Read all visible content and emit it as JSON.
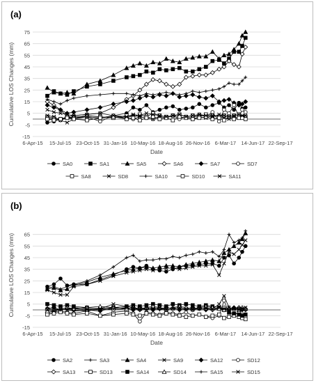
{
  "chart_data": [
    {
      "type": "line",
      "panel_label": "(a)",
      "xlabel": "Date",
      "ylabel": "Cumulative LOS Changes (mm)",
      "ylim": [
        -15,
        75
      ],
      "yticks": [
        -15,
        -5,
        5,
        15,
        25,
        35,
        45,
        55,
        65,
        75
      ],
      "xlim": [
        "2015-04-06",
        "2017-09-22"
      ],
      "xticks": [
        "6-Apr-15",
        "15-Jul-15",
        "23-Oct-15",
        "31-Jan-16",
        "10-May-16",
        "18-Aug-16",
        "26-Nov-16",
        "6-Mar-17",
        "14-Jun-17",
        "22-Sep-17"
      ],
      "grid": "horizontal",
      "legend": "bottom",
      "dates": [
        "2015-05-29",
        "2015-06-22",
        "2015-07-16",
        "2015-08-09",
        "2015-09-02",
        "2015-10-20",
        "2015-12-07",
        "2016-01-24",
        "2016-03-12",
        "2016-04-05",
        "2016-04-29",
        "2016-05-23",
        "2016-06-16",
        "2016-07-10",
        "2016-08-03",
        "2016-08-27",
        "2016-09-20",
        "2016-10-14",
        "2016-11-07",
        "2016-12-01",
        "2016-12-25",
        "2017-01-18",
        "2017-02-11",
        "2017-03-01",
        "2017-03-19",
        "2017-04-06",
        "2017-04-24",
        "2017-05-06",
        "2017-05-18"
      ],
      "series": [
        {
          "name": "SA0",
          "marker": "circle-filled",
          "values": [
            -3,
            -2,
            0,
            1,
            1,
            2,
            1,
            3,
            5,
            10,
            8,
            12,
            6,
            8,
            10,
            11,
            8,
            9,
            10,
            13,
            10,
            12,
            14,
            10,
            12,
            8,
            14,
            9,
            10
          ]
        },
        {
          "name": "SA1",
          "marker": "square-filled",
          "values": [
            20,
            24,
            22,
            21,
            24,
            28,
            30,
            33,
            36,
            37,
            38,
            41,
            40,
            43,
            42,
            43,
            44,
            41,
            41,
            43,
            45,
            50,
            51,
            48,
            52,
            58,
            58,
            63,
            70
          ]
        },
        {
          "name": "SA5",
          "marker": "triangle-filled",
          "values": [
            27,
            23,
            22,
            23,
            22,
            30,
            33,
            38,
            44,
            46,
            48,
            46,
            49,
            48,
            52,
            50,
            49,
            52,
            53,
            54,
            54,
            58,
            52,
            55,
            56,
            60,
            65,
            72,
            75
          ]
        },
        {
          "name": "SA6",
          "marker": "diamond-open",
          "values": [
            15,
            12,
            8,
            2,
            3,
            4,
            5,
            10,
            17,
            20,
            25,
            30,
            34,
            33,
            30,
            28,
            30,
            36,
            37,
            38,
            38,
            40,
            43,
            45,
            50,
            47,
            45,
            56,
            62
          ]
        },
        {
          "name": "SA7",
          "marker": "diamond-filled",
          "values": [
            12,
            10,
            8,
            5,
            6,
            8,
            10,
            13,
            15,
            16,
            18,
            20,
            19,
            21,
            20,
            22,
            19,
            20,
            21,
            19,
            18,
            20,
            15,
            16,
            17,
            14,
            12,
            13,
            15
          ]
        },
        {
          "name": "SD7",
          "marker": "circle-open",
          "values": [
            1,
            0,
            -1,
            1,
            2,
            2,
            -2,
            3,
            1,
            0,
            2,
            1,
            0,
            2,
            1,
            3,
            0,
            2,
            1,
            4,
            2,
            6,
            -2,
            8,
            5,
            12,
            2,
            8,
            6
          ]
        },
        {
          "name": "SA8",
          "marker": "square-open",
          "values": [
            2,
            1,
            0,
            2,
            1,
            3,
            2,
            1,
            3,
            2,
            4,
            2,
            5,
            3,
            2,
            3,
            4,
            2,
            3,
            2,
            4,
            3,
            2,
            3,
            2,
            3,
            4,
            2,
            2
          ]
        },
        {
          "name": "SD8",
          "marker": "x",
          "values": [
            3,
            2,
            -1,
            -3,
            0,
            2,
            1,
            2,
            1,
            3,
            2,
            1,
            0,
            2,
            1,
            3,
            2,
            1,
            0,
            2,
            1,
            3,
            2,
            1,
            0,
            2,
            1,
            2,
            1
          ]
        },
        {
          "name": "SA10",
          "marker": "plus",
          "values": [
            17,
            15,
            13,
            16,
            18,
            20,
            21,
            22,
            22,
            21,
            20,
            22,
            21,
            22,
            23,
            22,
            21,
            22,
            24,
            23,
            24,
            25,
            26,
            28,
            31,
            30,
            30,
            33,
            36
          ]
        },
        {
          "name": "SD10",
          "marker": "square-open",
          "values": [
            0,
            -1,
            0,
            1,
            0,
            -1,
            1,
            2,
            0,
            1,
            -1,
            1,
            2,
            0,
            1,
            -1,
            2,
            1,
            0,
            1,
            2,
            0,
            1,
            -1,
            2,
            0,
            1,
            1,
            0
          ]
        },
        {
          "name": "SA11",
          "marker": "x",
          "values": [
            8,
            6,
            5,
            4,
            3,
            4,
            5,
            3,
            2,
            4,
            3,
            5,
            4,
            3,
            2,
            3,
            4,
            2,
            3,
            4,
            3,
            2,
            4,
            3,
            2,
            3,
            4,
            3,
            3
          ]
        }
      ]
    },
    {
      "type": "line",
      "panel_label": "(b)",
      "xlabel": "Date",
      "ylabel": "Cumulative LOS Changes (mm)",
      "ylim": [
        -15,
        75
      ],
      "yticks": [
        -15,
        -5,
        5,
        15,
        25,
        35,
        45,
        55,
        65
      ],
      "xlim": [
        "2015-04-06",
        "2017-09-22"
      ],
      "xticks": [
        "6-Apr-15",
        "15-Jul-15",
        "23-Oct-15",
        "31-Jan-16",
        "10-May-16",
        "18-Aug-16",
        "26-Nov-16",
        "6-Mar-17",
        "14-Jun-17",
        "22-Sep-17"
      ],
      "grid": "horizontal",
      "legend": "bottom",
      "dates": [
        "2015-05-29",
        "2015-06-22",
        "2015-07-16",
        "2015-08-09",
        "2015-09-02",
        "2015-10-20",
        "2015-12-07",
        "2016-01-24",
        "2016-03-12",
        "2016-04-05",
        "2016-04-29",
        "2016-05-23",
        "2016-06-16",
        "2016-07-10",
        "2016-08-03",
        "2016-08-27",
        "2016-09-20",
        "2016-10-14",
        "2016-11-07",
        "2016-12-01",
        "2016-12-25",
        "2017-01-18",
        "2017-02-11",
        "2017-03-01",
        "2017-03-19",
        "2017-04-06",
        "2017-04-24",
        "2017-05-06",
        "2017-05-18"
      ],
      "series": [
        {
          "name": "SA2",
          "marker": "circle-filled",
          "values": [
            20,
            22,
            27,
            21,
            22,
            22,
            26,
            30,
            35,
            37,
            36,
            38,
            35,
            34,
            33,
            35,
            37,
            38,
            38,
            39,
            40,
            40,
            38,
            45,
            47,
            40,
            45,
            50,
            55
          ]
        },
        {
          "name": "SA3",
          "marker": "plus",
          "values": [
            19,
            20,
            18,
            20,
            22,
            25,
            30,
            37,
            45,
            47,
            42,
            43,
            43,
            44,
            44,
            46,
            45,
            47,
            48,
            50,
            49,
            50,
            46,
            52,
            65,
            58,
            60,
            62,
            68
          ]
        },
        {
          "name": "SA4",
          "marker": "triangle-filled",
          "values": [
            18,
            19,
            17,
            18,
            21,
            24,
            28,
            31,
            34,
            35,
            36,
            37,
            36,
            37,
            38,
            38,
            37,
            39,
            40,
            41,
            42,
            43,
            42,
            49,
            52,
            55,
            58,
            61,
            66
          ]
        },
        {
          "name": "SA9",
          "marker": "x",
          "values": [
            17,
            15,
            13,
            13,
            20,
            22,
            25,
            29,
            32,
            33,
            34,
            35,
            34,
            35,
            36,
            36,
            35,
            36,
            37,
            38,
            38,
            39,
            30,
            40,
            50,
            48,
            52,
            56,
            60
          ]
        },
        {
          "name": "SA12",
          "marker": "diamond-filled",
          "values": [
            1,
            2,
            0,
            1,
            1,
            0,
            -1,
            2,
            1,
            0,
            2,
            1,
            0,
            1,
            2,
            1,
            0,
            1,
            2,
            1,
            0,
            2,
            1,
            0,
            1,
            2,
            1,
            0,
            1
          ]
        },
        {
          "name": "SD12",
          "marker": "circle-open",
          "values": [
            -3,
            -2,
            -1,
            -2,
            -3,
            -1,
            -5,
            -2,
            -1,
            -3,
            -10,
            -2,
            -3,
            -4,
            -2,
            -3,
            -4,
            -2,
            -5,
            -4,
            -6,
            -7,
            -5,
            8,
            -3,
            -4,
            -2,
            -4,
            -6
          ]
        },
        {
          "name": "SA13",
          "marker": "diamond-open",
          "values": [
            -2,
            -1,
            0,
            1,
            0,
            -1,
            1,
            0,
            1,
            2,
            0,
            1,
            2,
            1,
            0,
            1,
            2,
            1,
            0,
            2,
            1,
            0,
            1,
            2,
            0,
            1,
            2,
            1,
            0
          ]
        },
        {
          "name": "SD13",
          "marker": "square-open",
          "values": [
            -4,
            -3,
            -2,
            -3,
            -4,
            -3,
            -5,
            -4,
            -3,
            -4,
            -5,
            -3,
            -4,
            -5,
            -3,
            -4,
            -5,
            -6,
            -5,
            -4,
            -6,
            -5,
            -4,
            -7,
            -6,
            -5,
            -6,
            -7,
            -8
          ]
        },
        {
          "name": "SA14",
          "marker": "square-filled",
          "values": [
            5,
            4,
            3,
            4,
            3,
            2,
            1,
            2,
            3,
            4,
            3,
            4,
            5,
            4,
            3,
            5,
            4,
            5,
            4,
            3,
            4,
            3,
            2,
            0,
            -2,
            -3,
            -4,
            -5,
            -4
          ]
        },
        {
          "name": "SD14",
          "marker": "triangle-open",
          "values": [
            1,
            0,
            1,
            2,
            1,
            2,
            3,
            2,
            1,
            2,
            1,
            2,
            3,
            2,
            1,
            2,
            3,
            2,
            1,
            2,
            3,
            2,
            1,
            0,
            2,
            1,
            0,
            2,
            1
          ]
        },
        {
          "name": "SA15",
          "marker": "plus",
          "values": [
            2,
            1,
            0,
            1,
            2,
            1,
            0,
            1,
            2,
            1,
            0,
            2,
            1,
            0,
            1,
            2,
            1,
            0,
            1,
            2,
            1,
            0,
            2,
            1,
            0,
            1,
            2,
            1,
            0
          ]
        },
        {
          "name": "SD15",
          "marker": "x",
          "values": [
            0,
            -1,
            1,
            0,
            -1,
            0,
            1,
            5,
            3,
            2,
            1,
            0,
            1,
            2,
            0,
            1,
            2,
            1,
            0,
            1,
            2,
            1,
            5,
            12,
            2,
            1,
            0,
            1,
            2
          ]
        }
      ]
    }
  ]
}
